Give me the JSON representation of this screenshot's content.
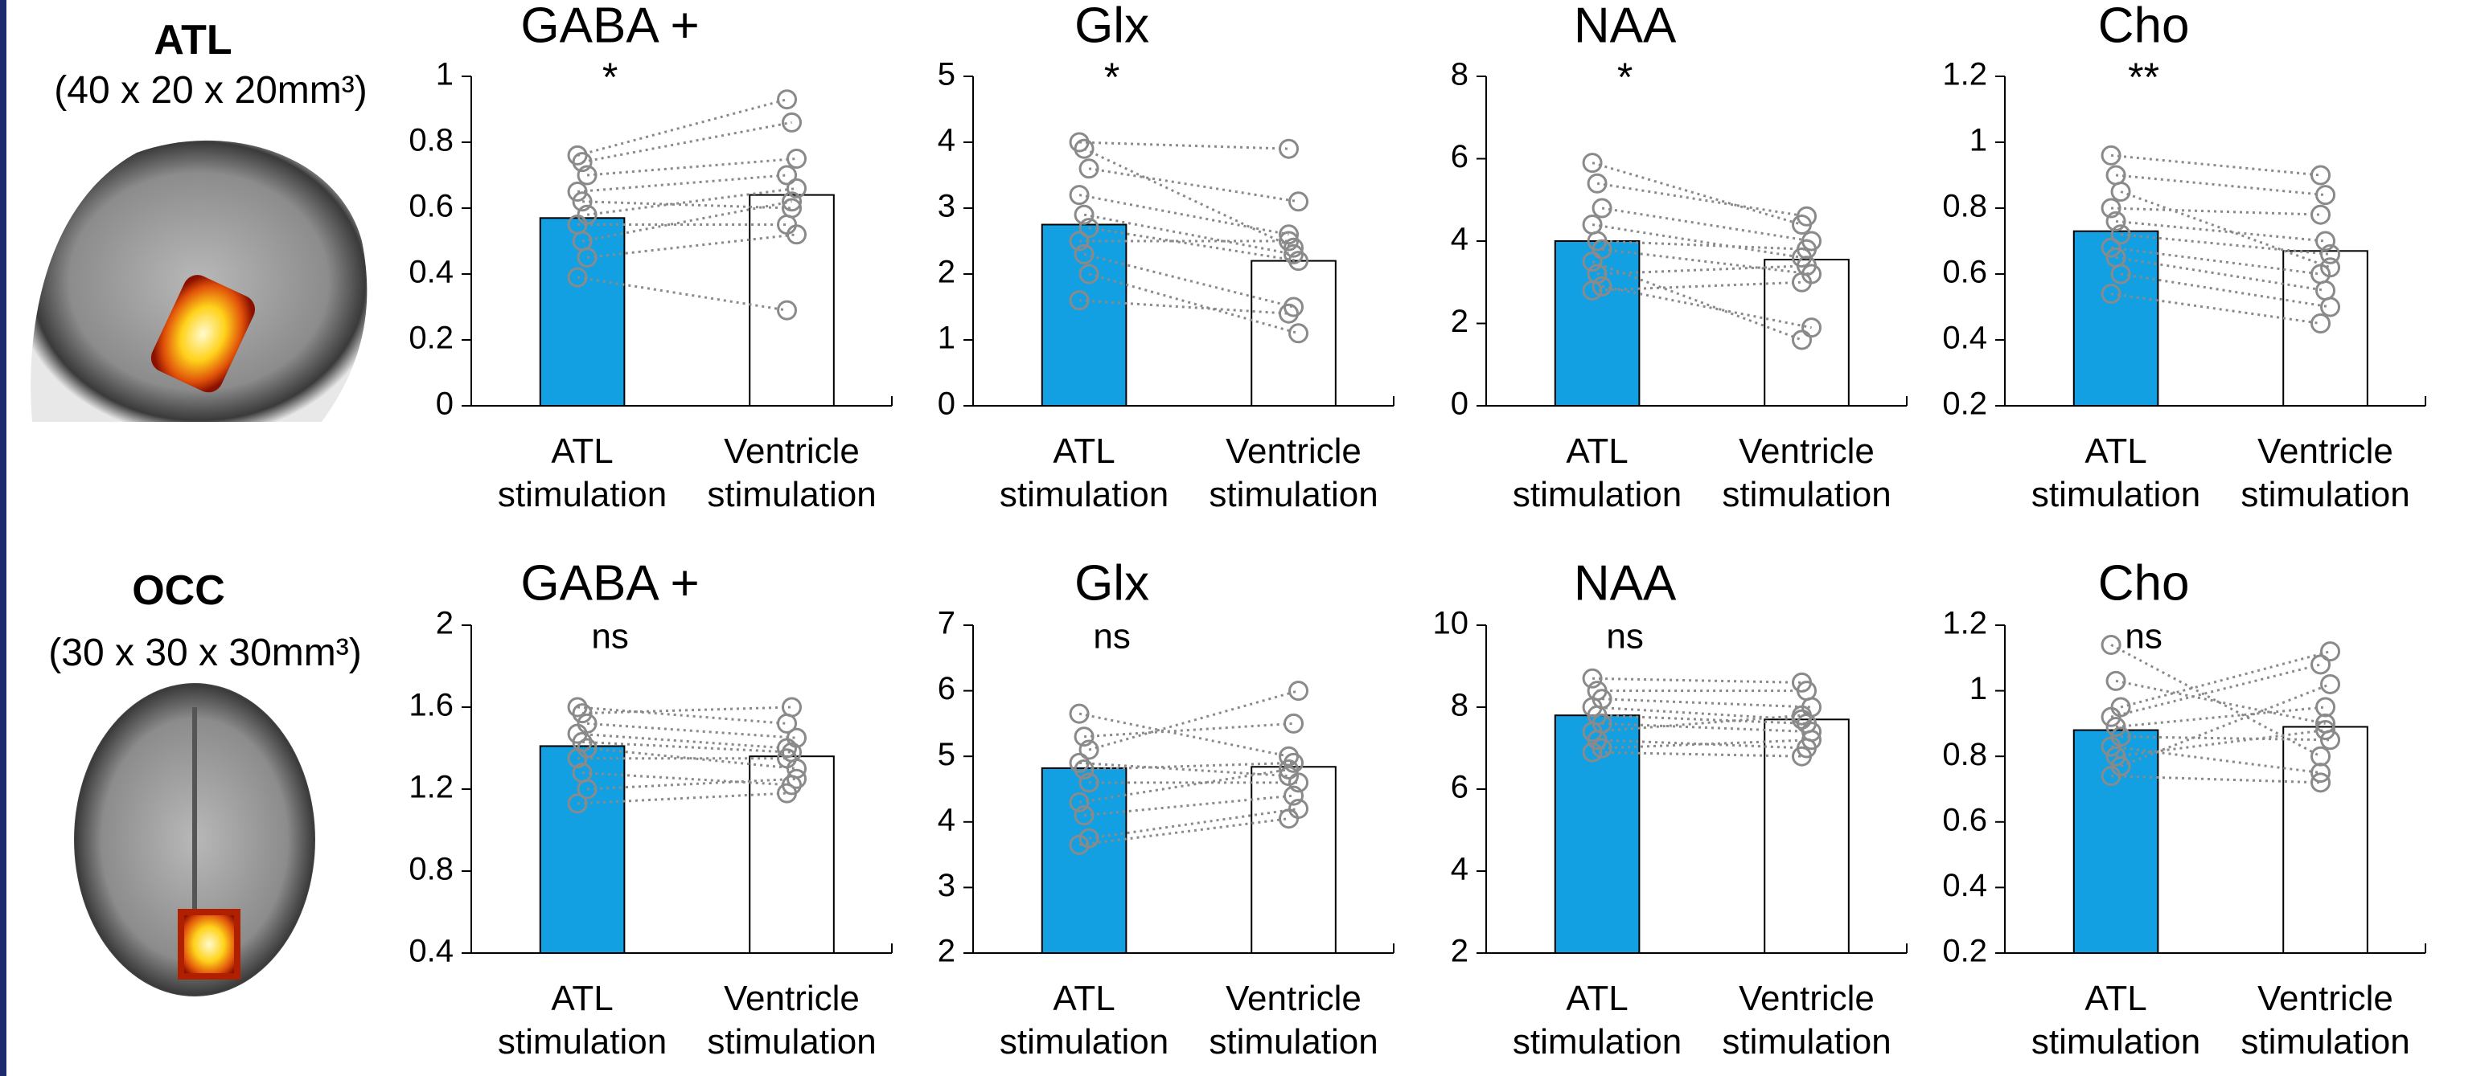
{
  "rows": [
    {
      "region": "ATL",
      "size": "(40 x 20 x 20mm³)"
    },
    {
      "region": "OCC",
      "size": "(30 x 30 x 30mm³)"
    }
  ],
  "chart_data": [
    {
      "type": "bar",
      "title": "GABA +",
      "annotation": "*",
      "categories": [
        "ATL stimulation",
        "Ventricle stimulation"
      ],
      "values": [
        0.57,
        0.64
      ],
      "colors": [
        "#12a0e3",
        "#ffffff"
      ],
      "ylim": [
        0,
        1
      ],
      "yticks": [
        0,
        0.2,
        0.4,
        0.6,
        0.8,
        1
      ],
      "points": [
        [
          0.76,
          0.74,
          0.7,
          0.65,
          0.62,
          0.58,
          0.55,
          0.5,
          0.45,
          0.39
        ],
        [
          0.93,
          0.86,
          0.75,
          0.7,
          0.6,
          0.66,
          0.55,
          0.62,
          0.52,
          0.29
        ]
      ]
    },
    {
      "type": "bar",
      "title": "Glx",
      "annotation": "*",
      "categories": [
        "ATL stimulation",
        "Ventricle stimulation"
      ],
      "values": [
        2.75,
        2.2
      ],
      "colors": [
        "#12a0e3",
        "#ffffff"
      ],
      "ylim": [
        0,
        5
      ],
      "yticks": [
        0,
        1,
        2,
        3,
        4,
        5
      ],
      "points": [
        [
          4.0,
          3.9,
          3.6,
          3.2,
          2.9,
          2.7,
          2.5,
          2.3,
          2.0,
          1.6
        ],
        [
          3.9,
          2.4,
          3.1,
          2.6,
          2.3,
          2.2,
          2.5,
          1.5,
          1.1,
          1.4
        ]
      ]
    },
    {
      "type": "bar",
      "title": "NAA",
      "annotation": "*",
      "categories": [
        "ATL stimulation",
        "Ventricle stimulation"
      ],
      "values": [
        4.0,
        3.55
      ],
      "colors": [
        "#12a0e3",
        "#ffffff"
      ],
      "ylim": [
        0,
        8
      ],
      "yticks": [
        0,
        2,
        4,
        6,
        8
      ],
      "points": [
        [
          5.9,
          5.4,
          4.8,
          4.4,
          4.0,
          3.8,
          3.5,
          3.2,
          2.9,
          2.8
        ],
        [
          4.4,
          4.6,
          4.0,
          3.6,
          3.8,
          3.2,
          1.6,
          3.4,
          1.9,
          3.0
        ]
      ]
    },
    {
      "type": "bar",
      "title": "Cho",
      "annotation": "**",
      "categories": [
        "ATL stimulation",
        "Ventricle stimulation"
      ],
      "values": [
        0.73,
        0.67
      ],
      "colors": [
        "#12a0e3",
        "#ffffff"
      ],
      "ylim": [
        0.2,
        1.2
      ],
      "yticks": [
        0.2,
        0.4,
        0.6,
        0.8,
        1,
        1.2
      ],
      "points": [
        [
          0.96,
          0.9,
          0.85,
          0.8,
          0.76,
          0.72,
          0.68,
          0.65,
          0.6,
          0.54
        ],
        [
          0.9,
          0.84,
          0.62,
          0.78,
          0.7,
          0.66,
          0.6,
          0.55,
          0.5,
          0.45
        ]
      ]
    },
    {
      "type": "bar",
      "title": "GABA +",
      "annotation": "ns",
      "categories": [
        "ATL stimulation",
        "Ventricle stimulation"
      ],
      "values": [
        1.41,
        1.36
      ],
      "colors": [
        "#12a0e3",
        "#ffffff"
      ],
      "ylim": [
        0.4,
        2
      ],
      "yticks": [
        0.4,
        0.8,
        1.2,
        1.6,
        2
      ],
      "points": [
        [
          1.6,
          1.57,
          1.52,
          1.47,
          1.43,
          1.4,
          1.35,
          1.28,
          1.2,
          1.13
        ],
        [
          1.52,
          1.6,
          1.45,
          1.4,
          1.38,
          1.3,
          1.35,
          1.22,
          1.25,
          1.18
        ]
      ]
    },
    {
      "type": "bar",
      "title": "Glx",
      "annotation": "ns",
      "categories": [
        "ATL stimulation",
        "Ventricle stimulation"
      ],
      "values": [
        4.82,
        4.84
      ],
      "colors": [
        "#12a0e3",
        "#ffffff"
      ],
      "ylim": [
        2,
        7
      ],
      "yticks": [
        2,
        3,
        4,
        5,
        6,
        7
      ],
      "points": [
        [
          5.65,
          5.3,
          5.1,
          4.9,
          4.8,
          4.6,
          4.3,
          4.1,
          3.75,
          3.65
        ],
        [
          5.0,
          5.5,
          6.0,
          4.7,
          4.9,
          4.6,
          4.8,
          4.4,
          4.2,
          4.05
        ]
      ]
    },
    {
      "type": "bar",
      "title": "NAA",
      "annotation": "ns",
      "categories": [
        "ATL stimulation",
        "Ventricle stimulation"
      ],
      "values": [
        7.8,
        7.7
      ],
      "colors": [
        "#12a0e3",
        "#ffffff"
      ],
      "ylim": [
        2,
        10
      ],
      "yticks": [
        2,
        4,
        6,
        8,
        10
      ],
      "points": [
        [
          8.7,
          8.4,
          8.2,
          8.0,
          7.8,
          7.6,
          7.4,
          7.2,
          7.0,
          6.9
        ],
        [
          8.6,
          8.4,
          8.0,
          7.7,
          7.6,
          7.4,
          7.8,
          7.0,
          7.2,
          6.8
        ]
      ]
    },
    {
      "type": "bar",
      "title": "Cho",
      "annotation": "ns",
      "categories": [
        "ATL stimulation",
        "Ventricle stimulation"
      ],
      "values": [
        0.88,
        0.89
      ],
      "colors": [
        "#12a0e3",
        "#ffffff"
      ],
      "ylim": [
        0.2,
        1.2
      ],
      "yticks": [
        0.2,
        0.4,
        0.6,
        0.8,
        1,
        1.2
      ],
      "points": [
        [
          1.14,
          1.03,
          0.95,
          0.92,
          0.89,
          0.86,
          0.83,
          0.8,
          0.77,
          0.74
        ],
        [
          0.8,
          0.9,
          1.12,
          1.08,
          0.95,
          0.85,
          0.75,
          0.88,
          1.02,
          0.72
        ]
      ]
    }
  ]
}
